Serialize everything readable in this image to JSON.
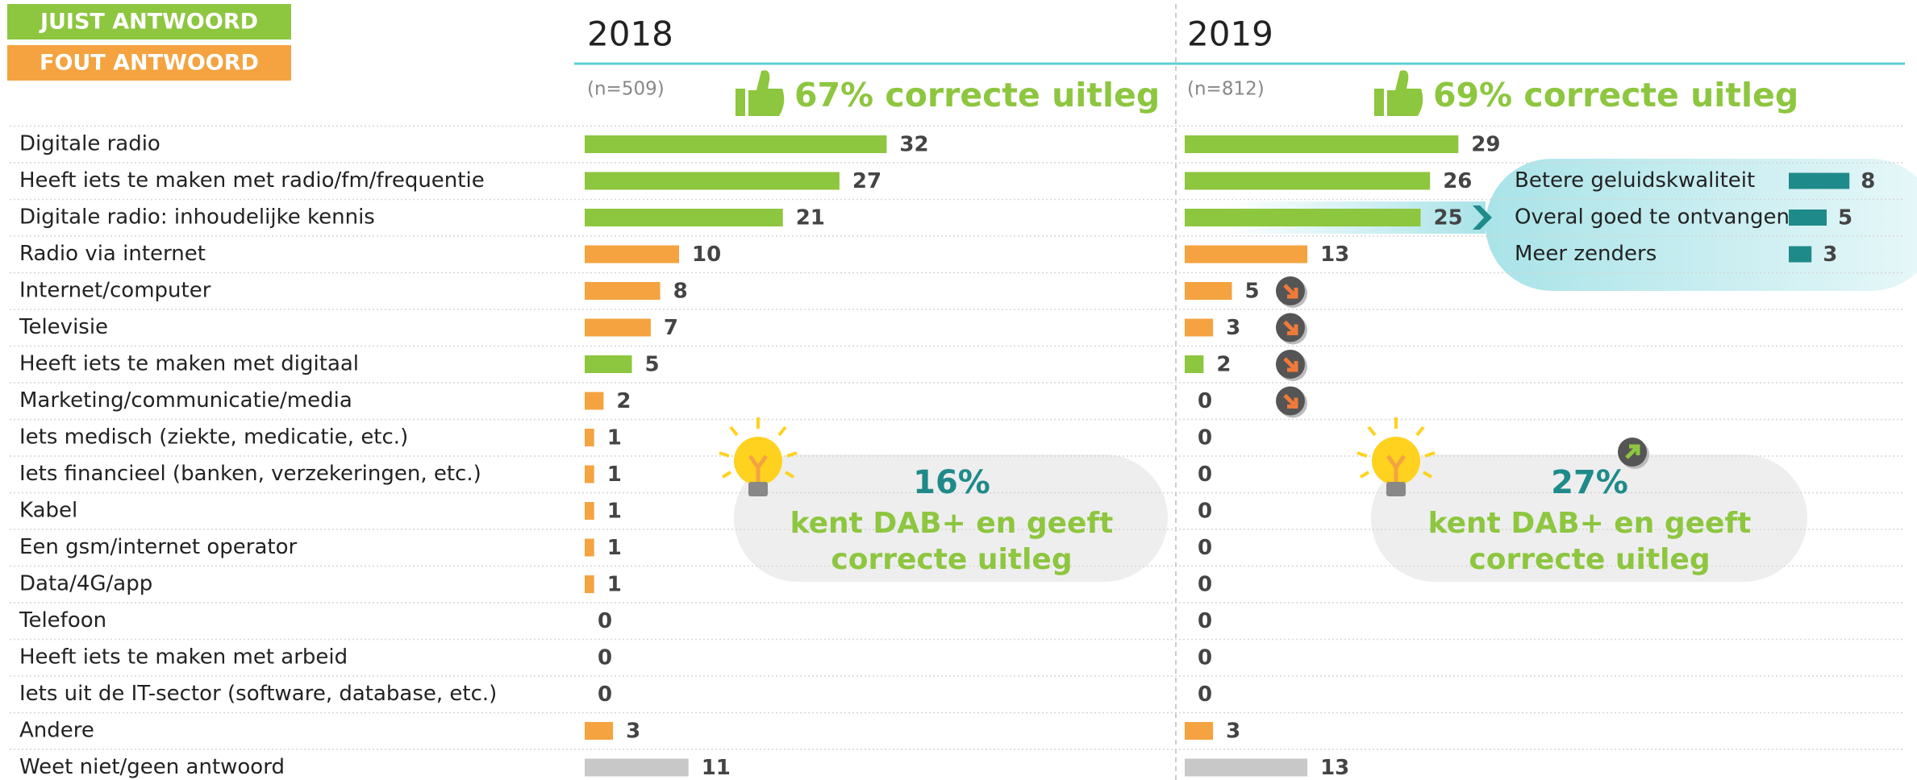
{
  "chart_data": {
    "type": "bar",
    "orientation": "horizontal",
    "legend": [
      {
        "name": "JUIST ANTWOORD",
        "color": "#8dc63f"
      },
      {
        "name": "FOUT ANTWOORD",
        "color": "#f4a340"
      }
    ],
    "categories": [
      "Digitale radio",
      "Heeft iets te maken met radio/fm/frequentie",
      "Digitale radio: inhoudelijke kennis",
      "Radio via internet",
      "Internet/computer",
      "Televisie",
      "Heeft iets te maken met digitaal",
      "Marketing/communicatie/media",
      "Iets medisch (ziekte, medicatie, etc.)",
      "Iets financieel (banken, verzekeringen, etc.)",
      "Kabel",
      "Een gsm/internet operator",
      "Data/4G/app",
      "Telefoon",
      "Heeft iets te maken met arbeid",
      "Iets uit de IT-sector (software, database, etc.)",
      "Andere",
      "Weet niet/geen antwoord"
    ],
    "category_colors": [
      "#8dc63f",
      "#8dc63f",
      "#8dc63f",
      "#f4a340",
      "#f4a340",
      "#f4a340",
      "#8dc63f",
      "#f4a340",
      "#f4a340",
      "#f4a340",
      "#f4a340",
      "#f4a340",
      "#f4a340",
      "#f4a340",
      "#f4a340",
      "#f4a340",
      "#f4a340",
      "#c8c8c8"
    ],
    "panels": [
      {
        "title": "2018",
        "n_label": "(n=509)",
        "headline": "67% correcte uitleg",
        "callout_figure": "16%",
        "callout_lines": [
          "kent DAB+ en geeft",
          "correcte uitleg"
        ],
        "values": [
          32,
          27,
          21,
          10,
          8,
          7,
          5,
          2,
          1,
          1,
          1,
          1,
          1,
          0,
          0,
          0,
          3,
          11
        ]
      },
      {
        "title": "2019",
        "n_label": "(n=812)",
        "headline": "69% correcte uitleg",
        "callout_figure": "27%",
        "callout_lines": [
          "kent DAB+ en geeft",
          "correcte uitleg"
        ],
        "values": [
          29,
          26,
          25,
          13,
          5,
          3,
          2,
          0,
          0,
          0,
          0,
          0,
          0,
          0,
          0,
          0,
          3,
          13
        ]
      }
    ],
    "inset": {
      "categories": [
        "Betere geluidskwaliteit",
        "Overal goed te ontvangen",
        "Meer zenders"
      ],
      "values": [
        8,
        5,
        3
      ],
      "color": "#1f8a8a"
    }
  }
}
